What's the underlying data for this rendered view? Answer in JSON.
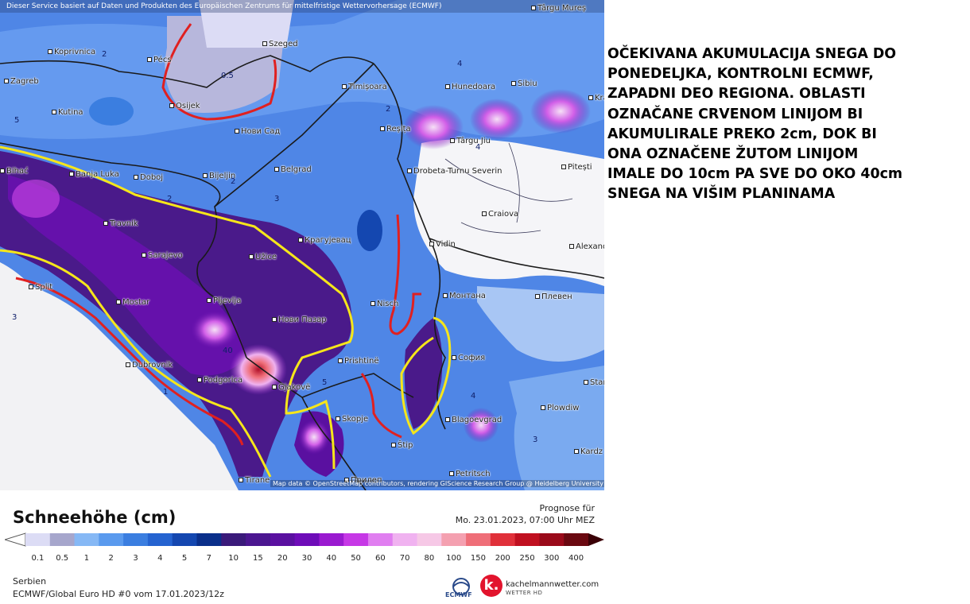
{
  "map": {
    "banner": "Dieser Service basiert auf Daten und Produkten des Europäischen Zentrums für mittelfristige Wettervorhersage (ECMWF)",
    "attribution": "Map data © OpenStreetMap contributors, rendering GIScience Research Group @ Heidelberg University",
    "places": [
      {
        "name": "Koprivnica"
      },
      {
        "name": "Pécs"
      },
      {
        "name": "Szeged"
      },
      {
        "name": "Zagreb"
      },
      {
        "name": "Osijek"
      },
      {
        "name": "Kutina"
      },
      {
        "name": "Timișoara"
      },
      {
        "name": "Hunedoara"
      },
      {
        "name": "Sibiu"
      },
      {
        "name": "Нови Сад"
      },
      {
        "name": "Reșița"
      },
      {
        "name": "Târgu Jiu"
      },
      {
        "name": "Pitești"
      },
      {
        "name": "Banja Luka"
      },
      {
        "name": "Doboj"
      },
      {
        "name": "Bijeljin"
      },
      {
        "name": "Belgrad"
      },
      {
        "name": "Drobeta-Turnu Severin"
      },
      {
        "name": "Craiova"
      },
      {
        "name": "Travnik"
      },
      {
        "name": "Крагујевац"
      },
      {
        "name": "Vidin"
      },
      {
        "name": "Alexand"
      },
      {
        "name": "Sarajevo"
      },
      {
        "name": "Užice"
      },
      {
        "name": "Split"
      },
      {
        "name": "Mostar"
      },
      {
        "name": "Pljevlja"
      },
      {
        "name": "Nisch"
      },
      {
        "name": "Монтана"
      },
      {
        "name": "Плевен"
      },
      {
        "name": "Нови Пазар"
      },
      {
        "name": "Dubrovnik"
      },
      {
        "name": "Prishtinë"
      },
      {
        "name": "София"
      },
      {
        "name": "Podgorica"
      },
      {
        "name": "Gjakovë"
      },
      {
        "name": "Stara"
      },
      {
        "name": "Blagoevgrad"
      },
      {
        "name": "Plowdiw"
      },
      {
        "name": "Skopje"
      },
      {
        "name": "Štip"
      },
      {
        "name": "Kardz"
      },
      {
        "name": "Petritsch"
      },
      {
        "name": "Tirane"
      },
      {
        "name": "Прилеп"
      },
      {
        "name": "Târgu Mureș"
      },
      {
        "name": "Kra"
      },
      {
        "name": "Bihać"
      }
    ],
    "contour_values": [
      "2",
      "0.5",
      "5",
      "2",
      "3",
      "2",
      "4",
      "4",
      "40",
      "5",
      "1",
      "3",
      "4",
      "3",
      "2"
    ]
  },
  "headline": "OČEKIVANA AKUMULACIJA SNEGA DO\nPONEDELJKA, KONTROLNI ECMWF,\nZAPADNI DEO REGIONA. OBLASTI\nOZNAČANE CRVENOM LINIJOM BI\nAKUMULIRALE PREKO 2cm, DOK BI\nONA OZNAČENE ŽUTOM LINIJOM\nIMALE DO 10cm PA SVE DO OKO 40cm\nSNEGA NA VIŠIM PLANINAMA",
  "legend": {
    "title": "Schneehöhe (cm)",
    "forecast_label": "Prognose für",
    "forecast_date": "Mo. 23.01.2023, 07:00 Uhr MEZ",
    "region": "Serbien",
    "model_run": "ECMWF/Global Euro HD #0 vom  17.01.2023/12z",
    "ticks": [
      "0.1",
      "0.5",
      "1",
      "2",
      "3",
      "4",
      "5",
      "7",
      "10",
      "15",
      "20",
      "30",
      "40",
      "50",
      "60",
      "70",
      "80",
      "100",
      "150",
      "200",
      "250",
      "300",
      "400"
    ],
    "colors": [
      "#dcdcf5",
      "#a6a6cc",
      "#86b8f5",
      "#5a9aee",
      "#3b7ee0",
      "#2563d0",
      "#1447b0",
      "#0a2f8a",
      "#3a1a7a",
      "#4b1690",
      "#5a10a0",
      "#6e0cb8",
      "#9a1ad0",
      "#c638e6",
      "#e07ef0",
      "#f0b2f0",
      "#f6c8e6",
      "#f4a0b0",
      "#ef6e78",
      "#e0303a",
      "#c01020",
      "#9a0a1a",
      "#6a0810"
    ],
    "ecmwf": "ECMWF",
    "brand": "kachelmannwetter.com",
    "brand_sub": "WETTER HD",
    "brand_letter": "k."
  }
}
